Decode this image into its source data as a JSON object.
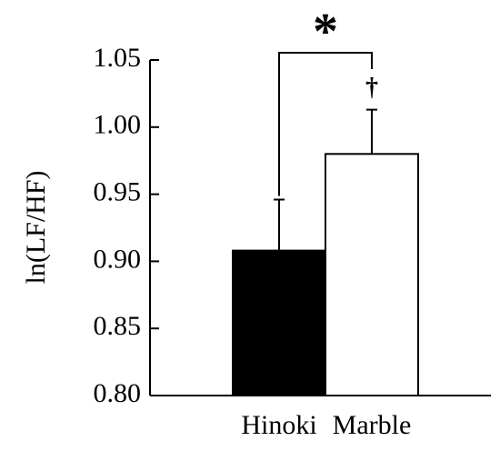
{
  "chart_data": {
    "type": "bar",
    "y_label": "ln(LF/HF)",
    "categories": [
      "Hinoki",
      "Marble"
    ],
    "values": [
      0.908,
      0.98
    ],
    "errors": [
      0.038,
      0.033
    ],
    "colors": [
      "#000000",
      "#ffffff"
    ],
    "ylim": [
      0.8,
      1.05
    ],
    "yticks": [
      {
        "value": 0.8,
        "label": "0.80"
      },
      0.85,
      {
        "value": 0.9,
        "label": "0.90"
      },
      0.95,
      {
        "value": 1.0,
        "label": "1.00"
      },
      1.05
    ],
    "annotations": [
      "*",
      "†"
    ]
  }
}
